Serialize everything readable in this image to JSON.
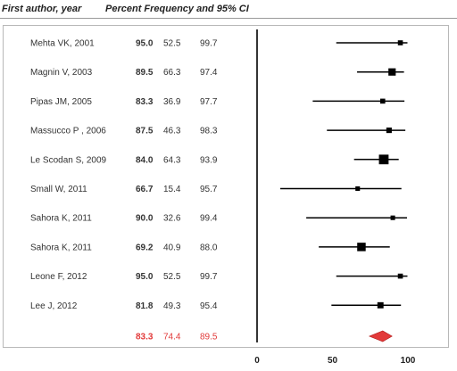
{
  "header": {
    "col1": "First author, year",
    "col2": "Percent Frequency and 95% CI"
  },
  "chart_data": {
    "type": "forest",
    "title": "",
    "xlabel": "",
    "ylabel": "",
    "xlim": [
      0,
      100
    ],
    "xticks": [
      "0",
      "50",
      "100"
    ],
    "studies": [
      {
        "label": "Mehta VK, 2001",
        "estimate": "95.0",
        "lower": "52.5",
        "upper": "99.7",
        "weight": 1.0
      },
      {
        "label": "Magnin V, 2003",
        "estimate": "89.5",
        "lower": "66.3",
        "upper": "97.4",
        "weight": 2.0
      },
      {
        "label": "Pipas JM, 2005",
        "estimate": "83.3",
        "lower": "36.9",
        "upper": "97.7",
        "weight": 1.0
      },
      {
        "label": "Massucco P , 2006",
        "estimate": "87.5",
        "lower": "46.3",
        "upper": "98.3",
        "weight": 1.2
      },
      {
        "label": "Le Scodan S, 2009",
        "estimate": "84.0",
        "lower": "64.3",
        "upper": "93.9",
        "weight": 3.0
      },
      {
        "label": "Small W, 2011",
        "estimate": "66.7",
        "lower": "15.4",
        "upper": "95.7",
        "weight": 0.8
      },
      {
        "label": "Sahora K, 2011",
        "estimate": "90.0",
        "lower": "32.6",
        "upper": "99.4",
        "weight": 0.8
      },
      {
        "label": "Sahora K, 2011",
        "estimate": "69.2",
        "lower": "40.9",
        "upper": "88.0",
        "weight": 2.5
      },
      {
        "label": "Leone F, 2012",
        "estimate": "95.0",
        "lower": "52.5",
        "upper": "99.7",
        "weight": 1.0
      },
      {
        "label": "Lee J, 2012",
        "estimate": "81.8",
        "lower": "49.3",
        "upper": "95.4",
        "weight": 1.5
      }
    ],
    "pooled": {
      "estimate": "83.3",
      "lower": "74.4",
      "upper": "89.5"
    },
    "colors": {
      "pooled": "#e23a3a",
      "marks": "#000000",
      "text": "#333333"
    }
  }
}
